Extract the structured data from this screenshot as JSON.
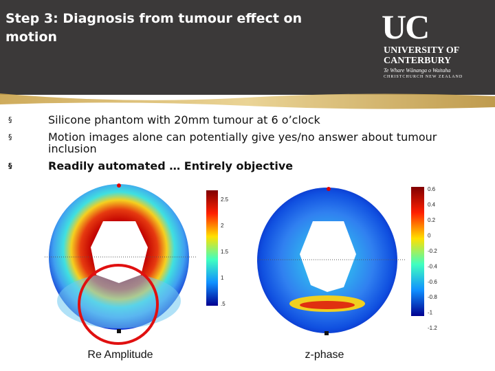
{
  "header": {
    "title": "Step 3: Diagnosis from tumour effect on motion",
    "logo": {
      "mark": "UC",
      "line1": "UNIVERSITY OF",
      "line2": "CANTERBURY",
      "motto": "Te Whare Wānanga o Waitaha",
      "place": "CHRISTCHURCH NEW ZEALAND"
    }
  },
  "bullets": [
    "Silicone phantom with 20mm tumour at 6 o’clock",
    "Motion images alone can potentially give yes/no answer about tumour inclusion",
    "Readily automated … Entirely objective"
  ],
  "figures": [
    {
      "caption": "Re Amplitude",
      "colorbar_ticks": [
        "2.5",
        "2",
        "1.5",
        "1",
        ".5"
      ]
    },
    {
      "caption": "z-phase",
      "colorbar_ticks": [
        "0.6",
        "0.4",
        "0.2",
        "0",
        "-0.2",
        "-0.4",
        "-0.6",
        "-0.8",
        "-1",
        "-1.2"
      ]
    }
  ]
}
